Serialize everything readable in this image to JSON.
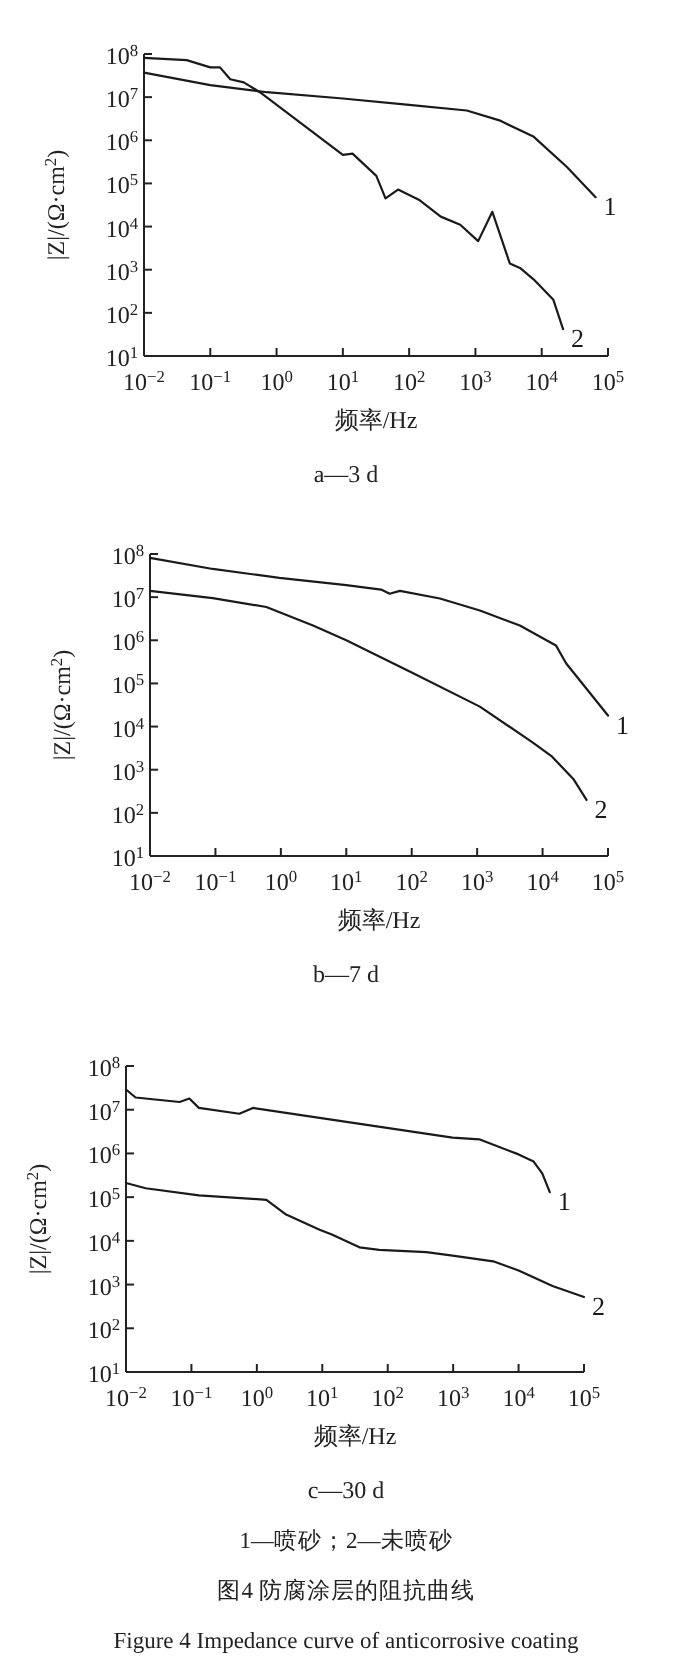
{
  "chart_data": [
    {
      "type": "line",
      "xlabel": "频率/Hz",
      "ylabel": "|Z|/(Ω·cm$^{2}$)",
      "log": "xy",
      "xlim": [
        0.01,
        100000
      ],
      "ylim": [
        10,
        100000000
      ],
      "xticks": [
        {
          "value": 0.01,
          "label": "10$^{−2}$"
        },
        {
          "value": 0.1,
          "label": "10$^{−1}$"
        },
        {
          "value": 1,
          "label": "10$^{0}$"
        },
        {
          "value": 10,
          "label": "10$^{1}$"
        },
        {
          "value": 100,
          "label": "10$^{2}$"
        },
        {
          "value": 1000,
          "label": "10$^{3}$"
        },
        {
          "value": 10000,
          "label": "10$^{4}$"
        },
        {
          "value": 100000,
          "label": "10$^{5}$"
        }
      ],
      "yticks": [
        {
          "value": 10,
          "label": "10$^{1}$"
        },
        {
          "value": 100,
          "label": "10$^{2}$"
        },
        {
          "value": 1000,
          "label": "10$^{3}$"
        },
        {
          "value": 10000,
          "label": "10$^{4}$"
        },
        {
          "value": 100000,
          "label": "10$^{5}$"
        },
        {
          "value": 1000000,
          "label": "10$^{6}$"
        },
        {
          "value": 10000000,
          "label": "10$^{7}$"
        },
        {
          "value": 100000000,
          "label": "10$^{8}$"
        }
      ],
      "series": [
        {
          "name": "1",
          "color": "#1a1a1a",
          "x": [
            0.01,
            0.1,
            0.71,
            10,
            100,
            740,
            2300,
            7600,
            24000,
            65000
          ],
          "values": [
            37000000,
            19000000,
            13000000,
            9300000,
            6600000,
            4900000,
            2900000,
            1200000,
            240000,
            48000
          ]
        },
        {
          "name": "2",
          "color": "#1a1a1a",
          "x": [
            0.01,
            0.044,
            0.1,
            0.14,
            0.2,
            0.32,
            0.56,
            10,
            14,
            32,
            44,
            68,
            140,
            300,
            590,
            1100,
            1800,
            3300,
            4700,
            7600,
            15000,
            21000
          ],
          "values": [
            81000000,
            72000000,
            49000000,
            49000000,
            26000000,
            22000000,
            13000000,
            460000,
            490000,
            150000,
            45000,
            72000,
            42000,
            17000,
            11000,
            4600,
            22000,
            1400,
            1100,
            590,
            200,
            42
          ]
        }
      ],
      "annotations": [
        "a—3 d"
      ]
    },
    {
      "type": "line",
      "xlabel": "频率/Hz",
      "ylabel": "|Z|/(Ω·cm$^{2}$)",
      "log": "xy",
      "xlim": [
        0.01,
        100000
      ],
      "ylim": [
        10,
        100000000
      ],
      "xticks": [
        {
          "value": 0.01,
          "label": "10$^{−2}$"
        },
        {
          "value": 0.1,
          "label": "10$^{−1}$"
        },
        {
          "value": 1,
          "label": "10$^{0}$"
        },
        {
          "value": 10,
          "label": "10$^{1}$"
        },
        {
          "value": 100,
          "label": "10$^{2}$"
        },
        {
          "value": 1000,
          "label": "10$^{3}$"
        },
        {
          "value": 10000,
          "label": "10$^{4}$"
        },
        {
          "value": 100000,
          "label": "10$^{5}$"
        }
      ],
      "yticks": [
        {
          "value": 10,
          "label": "10$^{1}$"
        },
        {
          "value": 100,
          "label": "10$^{2}$"
        },
        {
          "value": 1000,
          "label": "10$^{3}$"
        },
        {
          "value": 10000,
          "label": "10$^{4}$"
        },
        {
          "value": 100000,
          "label": "10$^{5}$"
        },
        {
          "value": 1000000,
          "label": "10$^{6}$"
        },
        {
          "value": 10000000,
          "label": "10$^{7}$"
        },
        {
          "value": 100000000,
          "label": "10$^{8}$"
        }
      ],
      "series": [
        {
          "name": "1",
          "color": "#1a1a1a",
          "x": [
            0.01,
            0.091,
            0.95,
            10,
            34,
            46,
            66,
            270,
            1100,
            4500,
            16000,
            23000,
            100000
          ],
          "values": [
            81000000,
            45000000,
            28000000,
            19000000,
            15000000,
            12000000,
            14000000,
            9300000,
            4900000,
            2200000,
            760000,
            290000,
            18000
          ]
        },
        {
          "name": "2",
          "color": "#1a1a1a",
          "x": [
            0.01,
            0.091,
            0.6,
            3.1,
            10,
            100,
            1100,
            7200,
            14000,
            30000,
            47000
          ],
          "values": [
            14000000,
            9500000,
            5900000,
            2200000,
            1000000,
            180000,
            29000,
            4200,
            2000,
            590,
            200
          ]
        }
      ],
      "annotations": [
        "b—7 d"
      ]
    },
    {
      "type": "line",
      "xlabel": "频率/Hz",
      "ylabel": "|Z|/(Ω·cm$^{2}$)",
      "log": "xy",
      "xlim": [
        0.01,
        100000
      ],
      "ylim": [
        10,
        100000000
      ],
      "xticks": [
        {
          "value": 0.01,
          "label": "10$^{−2}$"
        },
        {
          "value": 0.1,
          "label": "10$^{−1}$"
        },
        {
          "value": 1,
          "label": "10$^{0}$"
        },
        {
          "value": 10,
          "label": "10$^{1}$"
        },
        {
          "value": 100,
          "label": "10$^{2}$"
        },
        {
          "value": 1000,
          "label": "10$^{3}$"
        },
        {
          "value": 10000,
          "label": "10$^{4}$"
        },
        {
          "value": 100000,
          "label": "10$^{5}$"
        }
      ],
      "yticks": [
        {
          "value": 10,
          "label": "10$^{1}$"
        },
        {
          "value": 100,
          "label": "10$^{2}$"
        },
        {
          "value": 1000,
          "label": "10$^{3}$"
        },
        {
          "value": 10000,
          "label": "10$^{4}$"
        },
        {
          "value": 100000,
          "label": "10$^{5}$"
        },
        {
          "value": 1000000,
          "label": "10$^{6}$"
        },
        {
          "value": 10000000,
          "label": "10$^{7}$"
        },
        {
          "value": 100000000,
          "label": "10$^{8}$"
        }
      ],
      "series": [
        {
          "name": "1",
          "color": "#1a1a1a",
          "x": [
            0.01,
            0.014,
            0.066,
            0.093,
            0.13,
            0.54,
            0.87,
            9.1,
            980,
            2500,
            10000,
            17000,
            23000,
            30000
          ],
          "values": [
            29000000,
            19000000,
            15000000,
            18000000,
            11000000,
            8100000,
            11000000,
            6500000,
            2300000,
            2100000,
            950000,
            650000,
            350000,
            130000
          ]
        },
        {
          "name": "2",
          "color": "#1a1a1a",
          "x": [
            0.01,
            0.02,
            0.13,
            1.4,
            2.8,
            9.1,
            14,
            37,
            74,
            390,
            980,
            4100,
            10000,
            33000,
            100000
          ],
          "values": [
            210000,
            160000,
            110000,
            87000,
            40000,
            18000,
            14000,
            7100,
            6200,
            5500,
            4600,
            3400,
            2100,
            930,
            520
          ]
        }
      ],
      "annotations": [
        "c—30 d",
        "1—喷砂；2—未喷砂",
        "图4  防腐涂层的阻抗曲线",
        "Figure 4   Impedance curve of anticorrosive coating"
      ]
    }
  ]
}
